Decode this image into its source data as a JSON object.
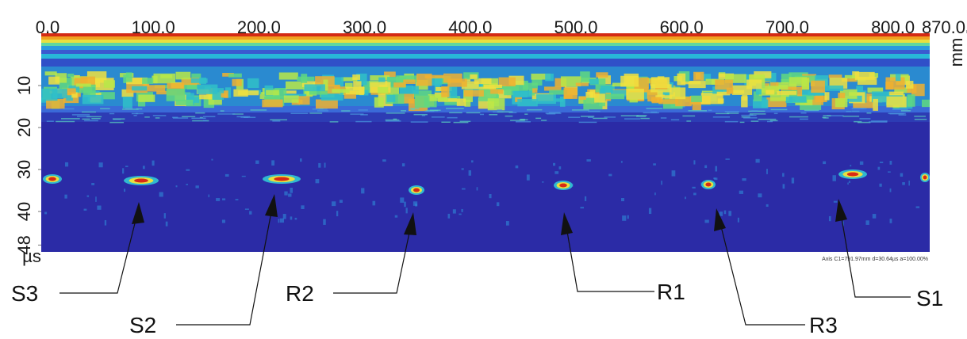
{
  "scan": {
    "x_axis": {
      "ticks": [
        {
          "value": 0,
          "label": "0.0"
        },
        {
          "value": 100,
          "label": "100.0"
        },
        {
          "value": 200,
          "label": "200.0"
        },
        {
          "value": 300,
          "label": "300.0"
        },
        {
          "value": 400,
          "label": "400.0"
        },
        {
          "value": 500,
          "label": "500.0"
        },
        {
          "value": 600,
          "label": "600.0"
        },
        {
          "value": 700,
          "label": "700.0"
        },
        {
          "value": 800,
          "label": "800.0"
        },
        {
          "value": 870,
          "label": "870.0"
        }
      ],
      "unit": "mm"
    },
    "y_axis": {
      "ticks": [
        10,
        20,
        30,
        40,
        48
      ],
      "unit": "µs"
    },
    "status": "Axis C1=791.97mm d=30.64µs a=100.00%",
    "annotations": [
      "S3",
      "S2",
      "R2",
      "R1",
      "R3",
      "S1"
    ]
  }
}
